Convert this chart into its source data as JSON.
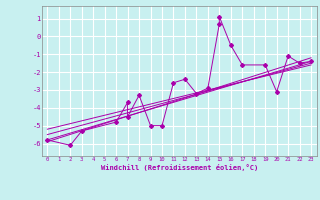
{
  "xlabel": "Windchill (Refroidissement éolien,°C)",
  "background_color": "#c8f0f0",
  "grid_color": "#ffffff",
  "line_color": "#aa00aa",
  "xlim": [
    -0.5,
    23.5
  ],
  "ylim": [
    -6.7,
    1.7
  ],
  "yticks": [
    1,
    0,
    -1,
    -2,
    -3,
    -4,
    -5,
    -6
  ],
  "xticks": [
    0,
    1,
    2,
    3,
    4,
    5,
    6,
    7,
    8,
    9,
    10,
    11,
    12,
    13,
    14,
    15,
    16,
    17,
    18,
    19,
    20,
    21,
    22,
    23
  ],
  "scatter_x": [
    0,
    2,
    3,
    6,
    7,
    7,
    8,
    9,
    10,
    11,
    12,
    13,
    14,
    15,
    15,
    16,
    17,
    19,
    20,
    21,
    22,
    23
  ],
  "scatter_y": [
    -5.8,
    -6.1,
    -5.3,
    -4.8,
    -3.7,
    -4.5,
    -3.3,
    -5.0,
    -5.0,
    -2.6,
    -2.4,
    -3.2,
    -2.9,
    0.7,
    1.1,
    -0.5,
    -1.6,
    -1.6,
    -3.1,
    -1.1,
    -1.5,
    -1.4
  ],
  "line1_x": [
    0,
    23
  ],
  "line1_y": [
    -5.8,
    -1.4
  ],
  "line2_x": [
    0,
    23
  ],
  "line2_y": [
    -5.5,
    -1.5
  ],
  "line3_x": [
    0,
    23
  ],
  "line3_y": [
    -5.2,
    -1.6
  ],
  "line4_x": [
    0,
    23
  ],
  "line4_y": [
    -5.9,
    -1.2
  ]
}
